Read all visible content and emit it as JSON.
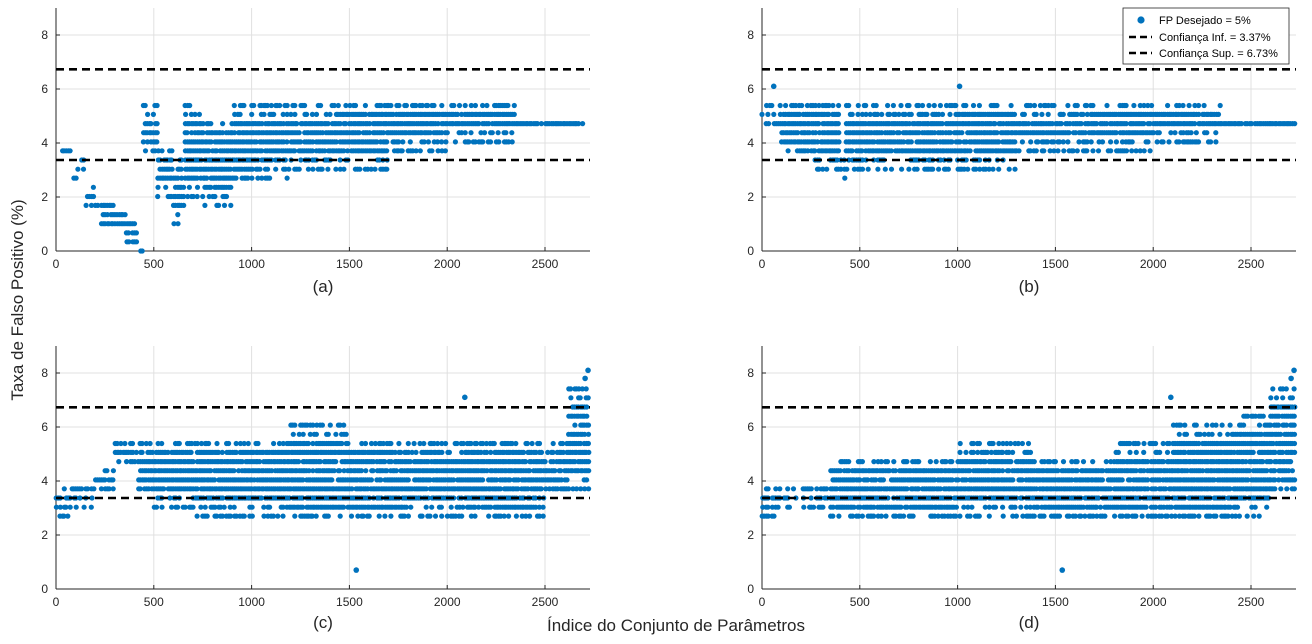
{
  "figure": {
    "ylabel": "Taxa de Falso Positivo (%)",
    "xlabel": "Índice do Conjunto de Parâmetros"
  },
  "legend": {
    "entries": [
      "FP Desejado = 5%",
      "Confiança Inf. = 3.37%",
      "Confiança Sup. = 6.73%"
    ]
  },
  "colors": {
    "points": "#0072BD",
    "bounds": "#000000",
    "grid": "#e0e0e0"
  },
  "chart_data": [
    {
      "type": "scatter",
      "panel_label": "(a)",
      "xlim": [
        0,
        2730
      ],
      "ylim": [
        0,
        9
      ],
      "xticks": [
        0,
        500,
        1000,
        1500,
        2000,
        2500
      ],
      "yticks": [
        0,
        2,
        4,
        6,
        8
      ],
      "grid": true,
      "hlines": {
        "lower": 3.37,
        "upper": 6.73
      },
      "series": [
        {
          "name": "FP Desejado = 5%",
          "bands": [
            {
              "x0": 0,
              "x1": 30,
              "lo": 4.7,
              "hi": 4.7
            },
            {
              "x0": 30,
              "x1": 80,
              "lo": 3.7,
              "hi": 4.0
            },
            {
              "x0": 80,
              "x1": 150,
              "lo": 2.4,
              "hi": 3.4
            },
            {
              "x0": 150,
              "x1": 230,
              "lo": 1.4,
              "hi": 2.4
            },
            {
              "x0": 230,
              "x1": 300,
              "lo": 1.0,
              "hi": 1.7
            },
            {
              "x0": 300,
              "x1": 360,
              "lo": 0.7,
              "hi": 1.4
            },
            {
              "x0": 360,
              "x1": 420,
              "lo": 0.3,
              "hi": 1.0
            },
            {
              "x0": 420,
              "x1": 445,
              "lo": 0.0,
              "hi": 0.3
            },
            {
              "x0": 445,
              "x1": 520,
              "lo": 3.7,
              "hi": 5.4
            },
            {
              "x0": 520,
              "x1": 600,
              "lo": 2.0,
              "hi": 4.0
            },
            {
              "x0": 600,
              "x1": 660,
              "lo": 1.0,
              "hi": 3.4
            },
            {
              "x0": 660,
              "x1": 760,
              "lo": 2.0,
              "hi": 5.4
            },
            {
              "x0": 760,
              "x1": 900,
              "lo": 1.7,
              "hi": 5.0
            },
            {
              "x0": 900,
              "x1": 1000,
              "lo": 2.4,
              "hi": 5.4
            },
            {
              "x0": 1000,
              "x1": 1200,
              "lo": 2.7,
              "hi": 5.4
            },
            {
              "x0": 1200,
              "x1": 1450,
              "lo": 3.0,
              "hi": 5.4
            },
            {
              "x0": 1450,
              "x1": 1700,
              "lo": 3.0,
              "hi": 5.7
            },
            {
              "x0": 1700,
              "x1": 2000,
              "lo": 3.7,
              "hi": 5.7
            },
            {
              "x0": 2000,
              "x1": 2350,
              "lo": 4.0,
              "hi": 5.7
            },
            {
              "x0": 2350,
              "x1": 2730,
              "lo": 4.4,
              "hi": 5.0
            }
          ]
        }
      ],
      "outliers": []
    },
    {
      "type": "scatter",
      "panel_label": "(b)",
      "xlim": [
        0,
        2730
      ],
      "ylim": [
        0,
        9
      ],
      "xticks": [
        0,
        500,
        1000,
        1500,
        2000,
        2500
      ],
      "yticks": [
        0,
        2,
        4,
        6,
        8
      ],
      "grid": true,
      "legend_position": "top-right",
      "hlines": {
        "lower": 3.37,
        "upper": 6.73
      },
      "series": [
        {
          "name": "FP Desejado = 5%",
          "bands": [
            {
              "x0": 0,
              "x1": 100,
              "lo": 4.7,
              "hi": 5.7
            },
            {
              "x0": 100,
              "x1": 250,
              "lo": 3.4,
              "hi": 5.7
            },
            {
              "x0": 250,
              "x1": 400,
              "lo": 3.0,
              "hi": 5.7
            },
            {
              "x0": 400,
              "x1": 430,
              "lo": 2.4,
              "hi": 3.4
            },
            {
              "x0": 430,
              "x1": 700,
              "lo": 3.0,
              "hi": 5.4
            },
            {
              "x0": 700,
              "x1": 1000,
              "lo": 3.0,
              "hi": 5.4
            },
            {
              "x0": 1000,
              "x1": 1300,
              "lo": 3.0,
              "hi": 5.7
            },
            {
              "x0": 1300,
              "x1": 1600,
              "lo": 3.7,
              "hi": 5.4
            },
            {
              "x0": 1600,
              "x1": 2000,
              "lo": 3.7,
              "hi": 5.7
            },
            {
              "x0": 2000,
              "x1": 2350,
              "lo": 4.0,
              "hi": 5.7
            },
            {
              "x0": 2350,
              "x1": 2730,
              "lo": 4.4,
              "hi": 5.0
            }
          ]
        }
      ],
      "outliers": [
        {
          "x": 1010,
          "y": 6.1
        },
        {
          "x": 60,
          "y": 6.1
        }
      ]
    },
    {
      "type": "scatter",
      "panel_label": "(c)",
      "xlim": [
        0,
        2730
      ],
      "ylim": [
        0,
        9
      ],
      "xticks": [
        0,
        500,
        1000,
        1500,
        2000,
        2500
      ],
      "yticks": [
        0,
        2,
        4,
        6,
        8
      ],
      "grid": true,
      "hlines": {
        "lower": 3.37,
        "upper": 6.73
      },
      "series": [
        {
          "name": "FP Desejado = 5%",
          "bands": [
            {
              "x0": 0,
              "x1": 80,
              "lo": 2.7,
              "hi": 4.0
            },
            {
              "x0": 80,
              "x1": 200,
              "lo": 3.0,
              "hi": 3.7
            },
            {
              "x0": 200,
              "x1": 300,
              "lo": 3.4,
              "hi": 4.7
            },
            {
              "x0": 300,
              "x1": 420,
              "lo": 4.4,
              "hi": 5.7
            },
            {
              "x0": 420,
              "x1": 500,
              "lo": 3.4,
              "hi": 5.4
            },
            {
              "x0": 500,
              "x1": 700,
              "lo": 3.0,
              "hi": 5.7
            },
            {
              "x0": 700,
              "x1": 1000,
              "lo": 2.7,
              "hi": 5.7
            },
            {
              "x0": 1000,
              "x1": 1200,
              "lo": 2.7,
              "hi": 5.7
            },
            {
              "x0": 1200,
              "x1": 1500,
              "lo": 2.4,
              "hi": 6.1
            },
            {
              "x0": 1500,
              "x1": 1800,
              "lo": 2.4,
              "hi": 5.7
            },
            {
              "x0": 1800,
              "x1": 2100,
              "lo": 2.7,
              "hi": 5.4
            },
            {
              "x0": 2100,
              "x1": 2500,
              "lo": 2.4,
              "hi": 5.7
            },
            {
              "x0": 2500,
              "x1": 2620,
              "lo": 3.4,
              "hi": 5.4
            },
            {
              "x0": 2620,
              "x1": 2730,
              "lo": 3.7,
              "hi": 7.4
            }
          ]
        }
      ],
      "outliers": [
        {
          "x": 1535,
          "y": 0.7
        },
        {
          "x": 2090,
          "y": 7.1
        },
        {
          "x": 2720,
          "y": 8.1
        },
        {
          "x": 2705,
          "y": 7.8
        }
      ]
    },
    {
      "type": "scatter",
      "panel_label": "(d)",
      "xlim": [
        0,
        2730
      ],
      "ylim": [
        0,
        9
      ],
      "xticks": [
        0,
        500,
        1000,
        1500,
        2000,
        2500
      ],
      "yticks": [
        0,
        2,
        4,
        6,
        8
      ],
      "grid": true,
      "hlines": {
        "lower": 3.37,
        "upper": 6.73
      },
      "series": [
        {
          "name": "FP Desejado = 5%",
          "bands": [
            {
              "x0": 0,
              "x1": 80,
              "lo": 2.7,
              "hi": 4.0
            },
            {
              "x0": 80,
              "x1": 350,
              "lo": 3.0,
              "hi": 3.7
            },
            {
              "x0": 350,
              "x1": 500,
              "lo": 2.4,
              "hi": 5.0
            },
            {
              "x0": 500,
              "x1": 1000,
              "lo": 2.4,
              "hi": 5.0
            },
            {
              "x0": 1000,
              "x1": 1400,
              "lo": 2.7,
              "hi": 5.4
            },
            {
              "x0": 1400,
              "x1": 1800,
              "lo": 2.4,
              "hi": 5.0
            },
            {
              "x0": 1800,
              "x1": 2100,
              "lo": 2.4,
              "hi": 5.4
            },
            {
              "x0": 2100,
              "x1": 2400,
              "lo": 2.4,
              "hi": 6.1
            },
            {
              "x0": 2400,
              "x1": 2600,
              "lo": 2.7,
              "hi": 6.4
            },
            {
              "x0": 2600,
              "x1": 2730,
              "lo": 3.4,
              "hi": 7.4
            }
          ]
        }
      ],
      "outliers": [
        {
          "x": 1535,
          "y": 0.7
        },
        {
          "x": 2090,
          "y": 7.1
        },
        {
          "x": 2720,
          "y": 8.1
        },
        {
          "x": 2705,
          "y": 7.8
        }
      ]
    }
  ]
}
